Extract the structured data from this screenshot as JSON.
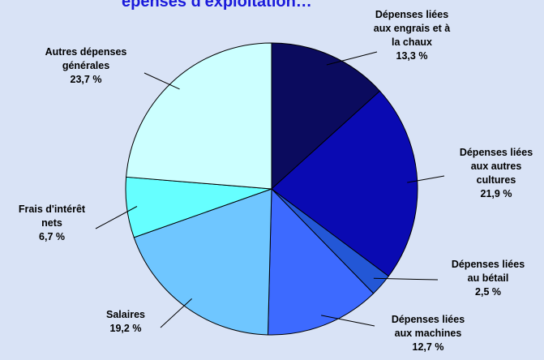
{
  "chart_data": {
    "type": "pie",
    "title": "",
    "cut_off_title_fragment": "épenses d'exploitation…",
    "slices": [
      {
        "label_lines": [
          "Dépenses liées",
          "aux engrais et à",
          "la chaux"
        ],
        "value": 13.3,
        "value_text": "13,3 %",
        "color": "#0b0b5e"
      },
      {
        "label_lines": [
          "Dépenses liées",
          "aux autres",
          "cultures"
        ],
        "value": 21.9,
        "value_text": "21,9 %",
        "color": "#0a0ab2"
      },
      {
        "label_lines": [
          "Dépenses liées",
          "au bétail"
        ],
        "value": 2.5,
        "value_text": "2,5 %",
        "color": "#2357d6"
      },
      {
        "label_lines": [
          "Dépenses liées",
          "aux machines"
        ],
        "value": 12.7,
        "value_text": "12,7 %",
        "color": "#3d6aff"
      },
      {
        "label_lines": [
          "Salaires"
        ],
        "value": 19.2,
        "value_text": "19,2 %",
        "color": "#6fc6ff"
      },
      {
        "label_lines": [
          "Frais d'intérêt",
          "nets"
        ],
        "value": 6.7,
        "value_text": "6,7 %",
        "color": "#66ffff"
      },
      {
        "label_lines": [
          "Autres dépenses",
          "générales"
        ],
        "value": 23.7,
        "value_text": "23,7 %",
        "color": "#ccffff"
      }
    ],
    "start_angle_deg": 0,
    "direction": "clockwise",
    "background": "#d9e3f6",
    "legend": "none"
  }
}
